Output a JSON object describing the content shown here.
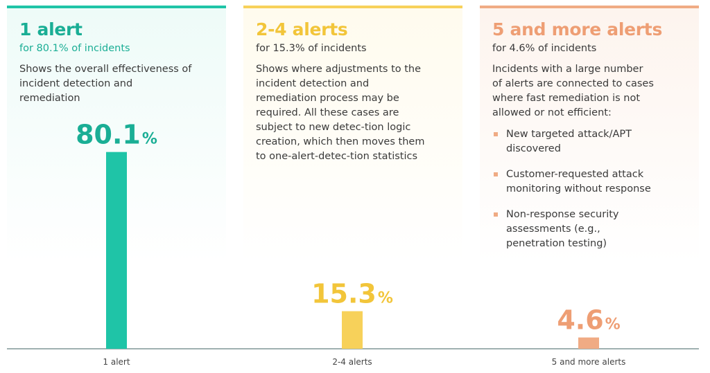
{
  "colors": {
    "teal": "#1fc4a7",
    "teal_text": "#1aae95",
    "teal_bg": "#eefbf8",
    "yellow": "#f7d15a",
    "yellow_text": "#f2c53a",
    "yellow_bg": "#fffbee",
    "orange": "#f0ab84",
    "orange_text": "#ee9e74",
    "orange_bg": "#fdf4ee",
    "axis": "#9fb0b0",
    "label": "#444444"
  },
  "panels": [
    {
      "title": "1 alert",
      "subtitle": "for 80.1% of incidents",
      "description": "Shows the overall effectiveness of incident detection and remediation",
      "bullets": []
    },
    {
      "title": "2-4 alerts",
      "subtitle": "for 15.3% of incidents",
      "description": "Shows where adjustments to the incident detection and remediation process may be required. All these cases are subject to new detec-tion logic creation, which then moves them to one-alert-detec-tion statistics",
      "bullets": []
    },
    {
      "title": "5 and more alerts",
      "subtitle": "for 4.6% of incidents",
      "description": "Incidents with a large number of alerts are connected to cases where fast remediation is not allowed or not efficient:",
      "bullets": [
        "New targeted attack/APT discovered",
        "Customer-requested attack monitoring without response",
        "Non-response security assessments (e.g., penetration testing)"
      ]
    }
  ],
  "chart_data": {
    "type": "bar",
    "categories": [
      "1 alert",
      "2-4 alerts",
      "5 and more alerts"
    ],
    "values": [
      80.1,
      15.3,
      4.6
    ],
    "value_labels": [
      "80.1",
      "15.3",
      "4.6"
    ],
    "unit": "%",
    "ylim": [
      0,
      100
    ],
    "grid": false,
    "legend": "none"
  }
}
